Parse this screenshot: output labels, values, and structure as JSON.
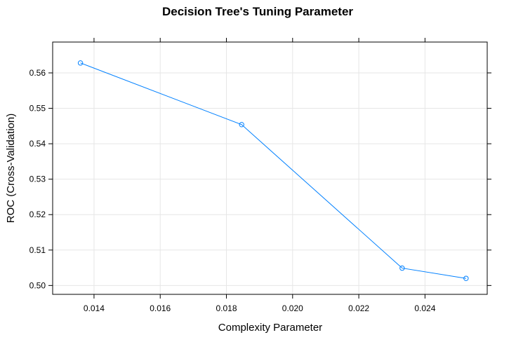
{
  "chart_data": {
    "type": "line",
    "title": "Decision Tree's Tuning Parameter",
    "xlabel": "Complexity Parameter",
    "ylabel": "ROC (Cross-Validation)",
    "xlim": [
      0.01275,
      0.02588
    ],
    "ylim": [
      0.4975,
      0.5687
    ],
    "x_ticks": [
      0.014,
      0.016,
      0.018,
      0.02,
      0.022,
      0.024
    ],
    "y_ticks": [
      0.5,
      0.51,
      0.52,
      0.53,
      0.54,
      0.55,
      0.56
    ],
    "x_tick_labels": [
      "0.014",
      "0.016",
      "0.018",
      "0.020",
      "0.022",
      "0.024"
    ],
    "y_tick_labels": [
      "0.50",
      "0.51",
      "0.52",
      "0.53",
      "0.54",
      "0.55",
      "0.56"
    ],
    "grid": true,
    "series": [
      {
        "x": [
          0.01359,
          0.01846,
          0.02331,
          0.02524
        ],
        "y": [
          0.5628,
          0.5454,
          0.5049,
          0.502
        ],
        "color": "#0080FF",
        "marker": "open-circle"
      }
    ]
  }
}
